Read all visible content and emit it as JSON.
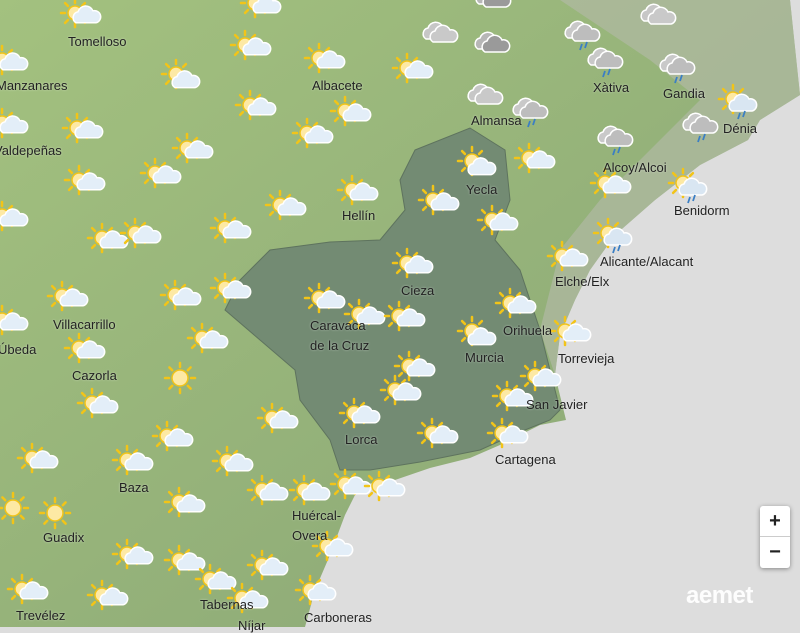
{
  "map": {
    "colors": {
      "sea": "#dddddd",
      "land": "#9cb882",
      "highlight_region": "#728a72",
      "coast_gray": "#b4bca8"
    },
    "cities": [
      "Tomelloso",
      "Manzanares",
      "Albacete",
      "Valdepeñas",
      "Hellín",
      "Villacarrillo",
      "Úbeda",
      "Cazorla",
      "Baza",
      "Guadix",
      "Trevélez",
      "Huércal-",
      "Overa",
      "Tabernas",
      "Níjar",
      "Carboneras",
      "Caravaca",
      "de la Cruz",
      "Lorca",
      "Cieza",
      "Yecla",
      "Almansa",
      "Xàtiva",
      "Gandia",
      "Dénia",
      "Alcoy/Alcoi",
      "Benidorm",
      "Alicante/Alacant",
      "Elche/Elx",
      "Orihuela",
      "Murcia",
      "Torrevieja",
      "San Javier",
      "Cartagena"
    ],
    "icon_types": [
      "sun-cloud",
      "cloud-sun",
      "sun",
      "cloud",
      "dark-cloud",
      "cloud-rain",
      "sun-rain"
    ]
  },
  "controls": {
    "zoom_in": "+",
    "zoom_out": "−"
  },
  "brand": {
    "logo": "aemet"
  }
}
